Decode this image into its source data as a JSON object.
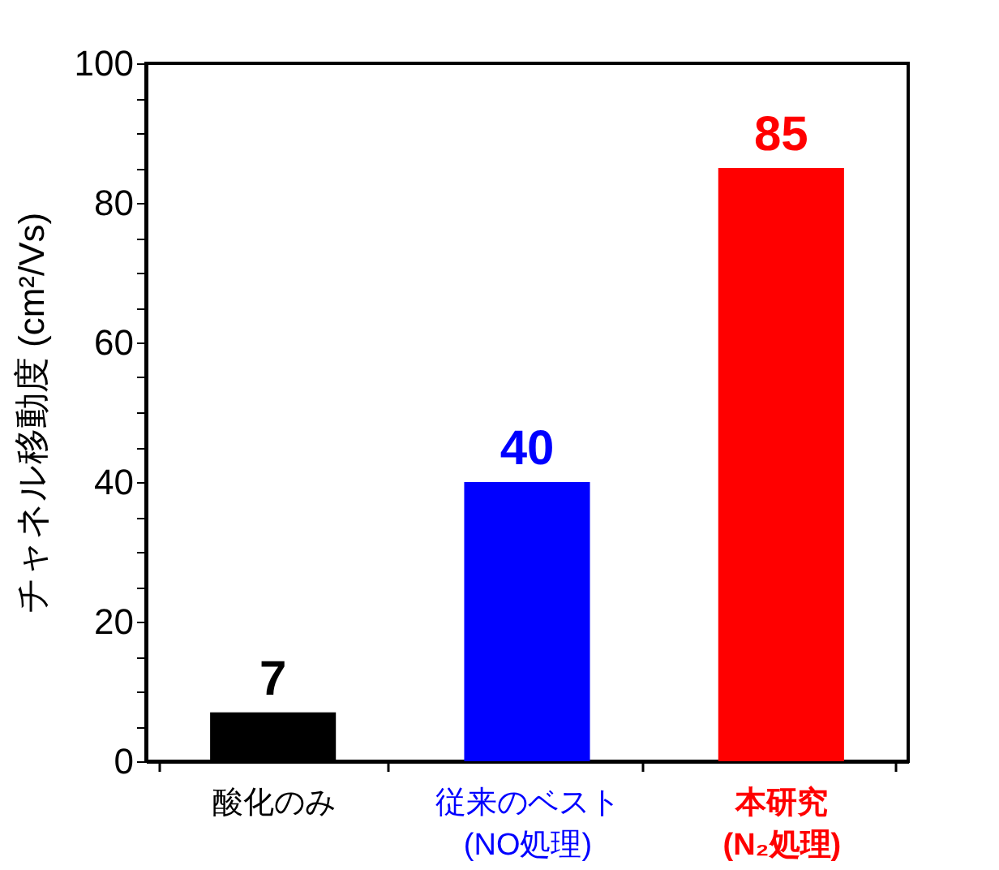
{
  "chart_data": {
    "type": "bar",
    "ylabel": "チャネル移動度 (cm²/Vs)",
    "categories": [
      "酸化のみ",
      "従来のベスト\n(NO処理)",
      "本研究\n(N₂処理)"
    ],
    "values": [
      7,
      40,
      85
    ],
    "colors": [
      "#000000",
      "#0000ff",
      "#ff0000"
    ],
    "data_labels": true,
    "ylim": [
      0,
      100
    ],
    "yticks": [
      0,
      {
        "value": 5,
        "label": null
      },
      {
        "value": 10,
        "label": null
      },
      {
        "value": 15,
        "label": null
      },
      20,
      {
        "value": 25,
        "label": null
      },
      {
        "value": 30,
        "label": null
      },
      {
        "value": 35,
        "label": null
      },
      40,
      {
        "value": 45,
        "label": null
      },
      {
        "value": 50,
        "label": null
      },
      {
        "value": 55,
        "label": null
      },
      60,
      {
        "value": 65,
        "label": null
      },
      {
        "value": 70,
        "label": null
      },
      {
        "value": 75,
        "label": null
      },
      80,
      {
        "value": 85,
        "label": null
      },
      {
        "value": 90,
        "label": null
      },
      {
        "value": 95,
        "label": null
      },
      100
    ],
    "grid": false
  }
}
